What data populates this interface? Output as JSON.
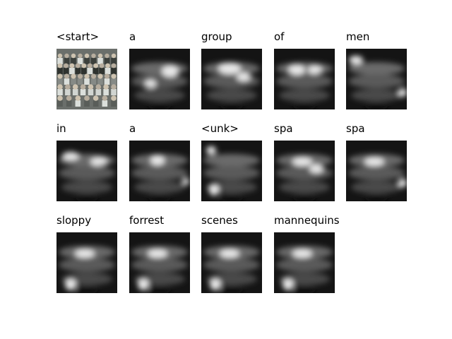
{
  "figure": {
    "words": [
      "<start>",
      "a",
      "group",
      "of",
      "men",
      "in",
      "a",
      "<unk>",
      "spa",
      "spa",
      "sloppy",
      "forrest",
      "scenes",
      "mannequins"
    ],
    "first_image": "photo",
    "other_images": "attention-heatmap"
  }
}
